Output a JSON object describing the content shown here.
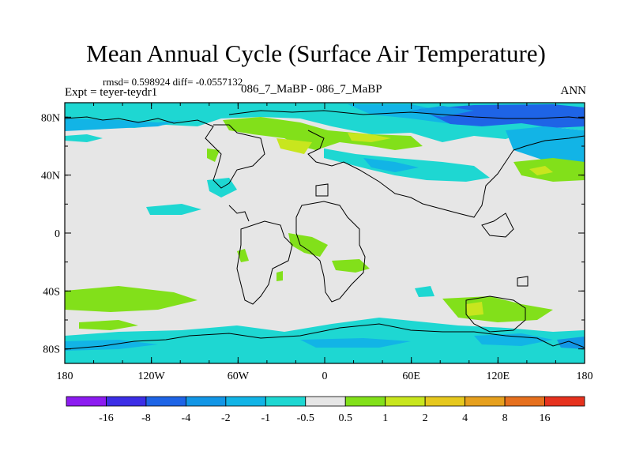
{
  "title": "Mean Annual Cycle (Surface Air Temperature)",
  "stats": "rmsd= 0.598924 diff= -0.0557132",
  "experiment": "Expt = teyer-teydr1",
  "center_label": "086_7_MaBP - 086_7_MaBP",
  "season": "ANN",
  "axes": {
    "lon_ticks": [
      "180",
      "120W",
      "60W",
      "0",
      "60E",
      "120E",
      "180"
    ],
    "lat_ticks": [
      "80N",
      "40N",
      "0",
      "40S",
      "80S"
    ]
  },
  "colorbar": {
    "labels": [
      "-16",
      "-8",
      "-4",
      "-2",
      "-1",
      "-0.5",
      "0.5",
      "1",
      "2",
      "4",
      "8",
      "16"
    ],
    "colors": [
      "#8c1cf0",
      "#3c2ee6",
      "#1e64e6",
      "#1296e6",
      "#12b4e6",
      "#1ed7d2",
      "#e6e6e6",
      "#82e01a",
      "#c8e61e",
      "#e6c81e",
      "#e6a01e",
      "#e6701e",
      "#e6321e"
    ]
  },
  "palette": {
    "land_outline": "#000000",
    "background": "#e6e6e6"
  }
}
